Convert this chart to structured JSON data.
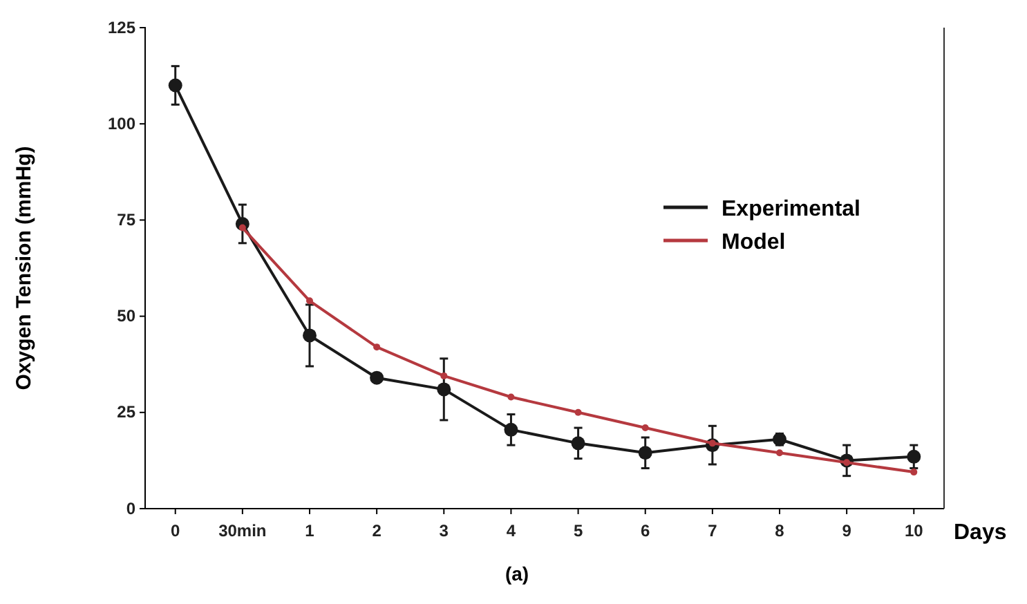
{
  "chart_data": {
    "type": "line",
    "ylabel": "Oxygen Tension (mmHg)",
    "xlabel": "Days",
    "annotations": [
      "(a)"
    ],
    "categories": [
      "0",
      "30min",
      "1",
      "2",
      "3",
      "4",
      "5",
      "6",
      "7",
      "8",
      "9",
      "10"
    ],
    "ylim": [
      0,
      125
    ],
    "yticks": [
      0,
      25,
      50,
      75,
      100,
      125
    ],
    "legend": "top right",
    "marker": "circle",
    "line_style": "solid",
    "grid": false,
    "series": [
      {
        "name": "Experimental",
        "color": "#1a1a1a",
        "values": [
          110,
          74,
          45,
          34,
          31,
          20.5,
          17,
          14.5,
          16.5,
          18,
          12.5,
          13.5
        ],
        "errors": [
          5,
          5,
          8,
          null,
          8,
          4,
          4,
          4,
          5,
          1.5,
          4,
          3
        ]
      },
      {
        "name": "Model",
        "color": "#b5393f",
        "values": [
          null,
          73,
          54,
          42,
          34.5,
          29,
          25,
          21,
          17,
          14.5,
          12,
          9.5
        ]
      }
    ]
  }
}
